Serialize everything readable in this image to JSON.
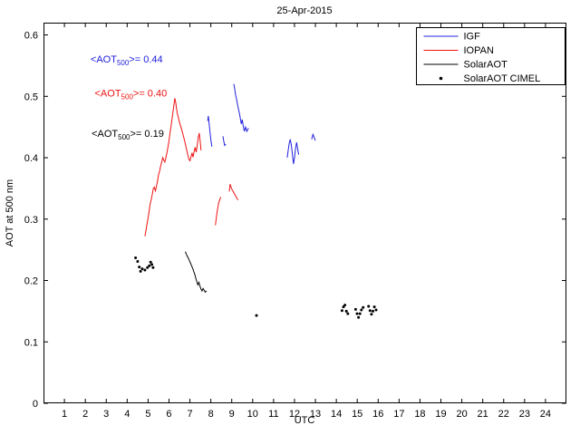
{
  "title": "25-Apr-2015",
  "chart_data": {
    "type": "line",
    "title": "25-Apr-2015",
    "xlabel": "UTC",
    "ylabel": "AOT at 500 nm",
    "xlim": [
      0,
      25
    ],
    "ylim": [
      0,
      0.62
    ],
    "xticks": [
      1,
      2,
      3,
      4,
      5,
      6,
      7,
      8,
      9,
      10,
      11,
      12,
      13,
      14,
      15,
      16,
      17,
      18,
      19,
      20,
      21,
      22,
      23,
      24
    ],
    "yticks": [
      0,
      0.1,
      0.2,
      0.3,
      0.4,
      0.5,
      0.6
    ],
    "ytick_labels": [
      "0",
      "0.1",
      "0.2",
      "0.3",
      "0.4",
      "0.5",
      "0.6"
    ],
    "grid": false,
    "legend_position": "top-right",
    "series": [
      {
        "name": "IGF",
        "color": "#2020dd",
        "type": "line",
        "segments": [
          [
            [
              7.85,
              0.46
            ],
            [
              7.88,
              0.468
            ],
            [
              7.92,
              0.455
            ],
            [
              7.95,
              0.445
            ],
            [
              7.98,
              0.435
            ],
            [
              8.02,
              0.425
            ],
            [
              8.05,
              0.418
            ]
          ],
          [
            [
              8.58,
              0.435
            ],
            [
              8.62,
              0.427
            ],
            [
              8.66,
              0.42
            ],
            [
              8.72,
              0.422
            ]
          ],
          [
            [
              9.1,
              0.52
            ],
            [
              9.14,
              0.512
            ],
            [
              9.18,
              0.503
            ],
            [
              9.22,
              0.497
            ],
            [
              9.26,
              0.49
            ],
            [
              9.3,
              0.483
            ],
            [
              9.34,
              0.476
            ],
            [
              9.38,
              0.47
            ],
            [
              9.42,
              0.462
            ],
            [
              9.46,
              0.455
            ],
            [
              9.5,
              0.462
            ],
            [
              9.55,
              0.452
            ],
            [
              9.6,
              0.443
            ],
            [
              9.66,
              0.45
            ],
            [
              9.72,
              0.443
            ],
            [
              9.8,
              0.448
            ]
          ],
          [
            [
              11.65,
              0.4
            ],
            [
              11.7,
              0.412
            ],
            [
              11.75,
              0.424
            ],
            [
              11.8,
              0.43
            ],
            [
              11.85,
              0.42
            ],
            [
              11.9,
              0.405
            ],
            [
              11.95,
              0.39
            ],
            [
              12.0,
              0.4
            ],
            [
              12.05,
              0.415
            ],
            [
              12.1,
              0.425
            ],
            [
              12.15,
              0.415
            ],
            [
              12.2,
              0.405
            ]
          ],
          [
            [
              12.82,
              0.43
            ],
            [
              12.88,
              0.438
            ],
            [
              12.94,
              0.433
            ],
            [
              13.0,
              0.428
            ]
          ]
        ]
      },
      {
        "name": "IOPAN",
        "color": "#ee1111",
        "type": "line",
        "segments": [
          [
            [
              4.85,
              0.272
            ],
            [
              4.9,
              0.282
            ],
            [
              4.95,
              0.292
            ],
            [
              5.0,
              0.302
            ],
            [
              5.05,
              0.313
            ],
            [
              5.1,
              0.325
            ],
            [
              5.15,
              0.332
            ],
            [
              5.2,
              0.34
            ],
            [
              5.25,
              0.35
            ],
            [
              5.3,
              0.352
            ],
            [
              5.35,
              0.346
            ],
            [
              5.4,
              0.353
            ],
            [
              5.45,
              0.362
            ],
            [
              5.5,
              0.372
            ],
            [
              5.55,
              0.378
            ],
            [
              5.6,
              0.386
            ],
            [
              5.65,
              0.393
            ],
            [
              5.7,
              0.4
            ],
            [
              5.75,
              0.396
            ],
            [
              5.8,
              0.393
            ],
            [
              5.85,
              0.4
            ],
            [
              5.9,
              0.408
            ],
            [
              5.95,
              0.417
            ],
            [
              6.0,
              0.428
            ],
            [
              6.05,
              0.44
            ],
            [
              6.1,
              0.452
            ],
            [
              6.15,
              0.464
            ],
            [
              6.2,
              0.477
            ],
            [
              6.25,
              0.49
            ],
            [
              6.28,
              0.497
            ],
            [
              6.32,
              0.49
            ],
            [
              6.36,
              0.48
            ],
            [
              6.4,
              0.472
            ],
            [
              6.45,
              0.465
            ],
            [
              6.5,
              0.458
            ],
            [
              6.55,
              0.452
            ],
            [
              6.6,
              0.447
            ],
            [
              6.65,
              0.44
            ],
            [
              6.7,
              0.434
            ],
            [
              6.75,
              0.427
            ],
            [
              6.8,
              0.42
            ],
            [
              6.85,
              0.412
            ],
            [
              6.9,
              0.404
            ],
            [
              6.95,
              0.398
            ],
            [
              7.0,
              0.395
            ],
            [
              7.05,
              0.401
            ],
            [
              7.1,
              0.408
            ],
            [
              7.15,
              0.401
            ],
            [
              7.2,
              0.41
            ],
            [
              7.25,
              0.417
            ],
            [
              7.3,
              0.409
            ],
            [
              7.35,
              0.42
            ],
            [
              7.4,
              0.433
            ],
            [
              7.45,
              0.44
            ],
            [
              7.5,
              0.424
            ],
            [
              7.53,
              0.412
            ]
          ],
          [
            [
              8.22,
              0.29
            ],
            [
              8.26,
              0.301
            ],
            [
              8.3,
              0.312
            ],
            [
              8.34,
              0.32
            ],
            [
              8.38,
              0.327
            ],
            [
              8.43,
              0.332
            ],
            [
              8.48,
              0.336
            ]
          ],
          [
            [
              8.88,
              0.345
            ],
            [
              8.92,
              0.357
            ],
            [
              8.96,
              0.353
            ],
            [
              9.0,
              0.349
            ],
            [
              9.05,
              0.346
            ],
            [
              9.1,
              0.343
            ],
            [
              9.15,
              0.34
            ],
            [
              9.2,
              0.337
            ],
            [
              9.25,
              0.334
            ],
            [
              9.3,
              0.331
            ]
          ]
        ]
      },
      {
        "name": "SolarAOT",
        "color": "#000000",
        "type": "line",
        "segments": [
          [
            [
              6.78,
              0.247
            ],
            [
              6.83,
              0.243
            ],
            [
              6.88,
              0.239
            ],
            [
              6.93,
              0.236
            ],
            [
              6.98,
              0.232
            ],
            [
              7.03,
              0.228
            ],
            [
              7.08,
              0.224
            ],
            [
              7.13,
              0.22
            ],
            [
              7.18,
              0.215
            ],
            [
              7.23,
              0.21
            ],
            [
              7.28,
              0.204
            ],
            [
              7.33,
              0.198
            ],
            [
              7.38,
              0.193
            ],
            [
              7.43,
              0.197
            ],
            [
              7.48,
              0.191
            ],
            [
              7.53,
              0.186
            ],
            [
              7.58,
              0.183
            ],
            [
              7.63,
              0.187
            ],
            [
              7.68,
              0.184
            ],
            [
              7.73,
              0.181
            ],
            [
              7.8,
              0.183
            ]
          ]
        ]
      },
      {
        "name": "SolarAOT CIMEL",
        "color": "#000000",
        "type": "scatter",
        "points": [
          [
            4.4,
            0.237
          ],
          [
            4.5,
            0.231
          ],
          [
            4.58,
            0.222
          ],
          [
            4.64,
            0.215
          ],
          [
            4.72,
            0.219
          ],
          [
            4.85,
            0.217
          ],
          [
            4.97,
            0.221
          ],
          [
            5.06,
            0.224
          ],
          [
            5.12,
            0.23
          ],
          [
            5.18,
            0.226
          ],
          [
            5.24,
            0.221
          ],
          [
            10.18,
            0.143
          ],
          [
            14.27,
            0.151
          ],
          [
            14.34,
            0.157
          ],
          [
            14.41,
            0.16
          ],
          [
            14.48,
            0.15
          ],
          [
            14.55,
            0.146
          ],
          [
            14.92,
            0.153
          ],
          [
            14.99,
            0.146
          ],
          [
            15.06,
            0.14
          ],
          [
            15.13,
            0.146
          ],
          [
            15.2,
            0.152
          ],
          [
            15.28,
            0.156
          ],
          [
            15.54,
            0.158
          ],
          [
            15.61,
            0.151
          ],
          [
            15.68,
            0.145
          ],
          [
            15.75,
            0.15
          ],
          [
            15.82,
            0.157
          ],
          [
            15.9,
            0.152
          ]
        ]
      }
    ],
    "annotations": [
      {
        "pre": "<AOT",
        "sub": "500",
        "post": ">= 0.44",
        "color": "#2020dd",
        "x": 2.25,
        "y": 0.555
      },
      {
        "pre": "<AOT",
        "sub": "500",
        "post": ">= 0.40",
        "color": "#ee1111",
        "x": 2.45,
        "y": 0.5
      },
      {
        "pre": "<AOT",
        "sub": "500",
        "post": ">= 0.19",
        "color": "#000000",
        "x": 2.3,
        "y": 0.434
      }
    ]
  }
}
